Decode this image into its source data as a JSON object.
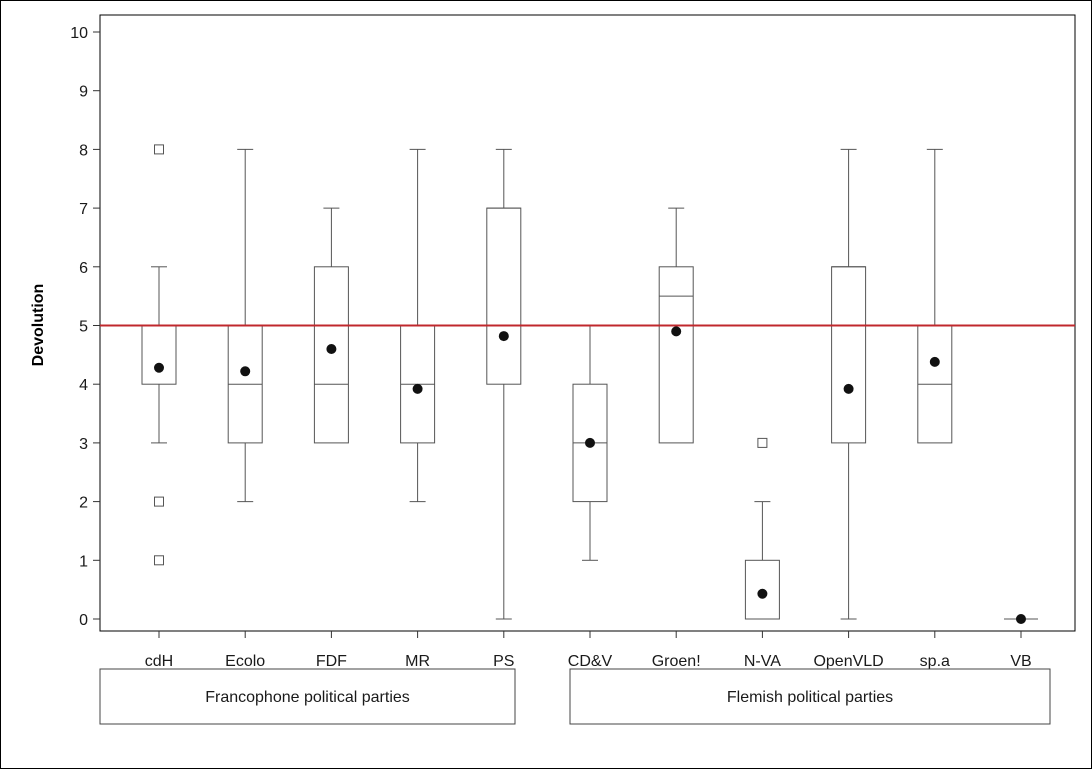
{
  "chart_data": {
    "type": "box",
    "ylabel": "Devolution",
    "xlabel": "",
    "ylim": [
      0,
      10
    ],
    "yticks": [
      0,
      1,
      2,
      3,
      4,
      5,
      6,
      7,
      8,
      9,
      10
    ],
    "reference_line": {
      "y": 5,
      "color": "#c0282d"
    },
    "categories": [
      "cdH",
      "Ecolo",
      "FDF",
      "MR",
      "PS",
      "CD&V",
      "Groen!",
      "N-VA",
      "OpenVLD",
      "sp.a",
      "VB"
    ],
    "boxes": [
      {
        "name": "cdH",
        "whisker_low": 3,
        "q1": 4,
        "median": 5,
        "q3": 5,
        "whisker_high": 6,
        "mean": 4.28,
        "outliers": [
          1,
          2,
          8
        ]
      },
      {
        "name": "Ecolo",
        "whisker_low": 2,
        "q1": 3,
        "median": 4,
        "q3": 5,
        "whisker_high": 8,
        "mean": 4.22,
        "outliers": []
      },
      {
        "name": "FDF",
        "whisker_low": 3,
        "q1": 3,
        "median": 4,
        "q3": 6,
        "whisker_high": 7,
        "mean": 4.6,
        "outliers": []
      },
      {
        "name": "MR",
        "whisker_low": 2,
        "q1": 3,
        "median": 4,
        "q3": 5,
        "whisker_high": 8,
        "mean": 3.92,
        "outliers": []
      },
      {
        "name": "PS",
        "whisker_low": 0,
        "q1": 4,
        "median": 7,
        "q3": 7,
        "whisker_high": 8,
        "mean": 4.82,
        "outliers": []
      },
      {
        "name": "CD&V",
        "whisker_low": 1,
        "q1": 2,
        "median": 3,
        "q3": 4,
        "whisker_high": 5,
        "mean": 3.0,
        "outliers": []
      },
      {
        "name": "Groen!",
        "whisker_low": 3,
        "q1": 3,
        "median": 5.5,
        "q3": 6,
        "whisker_high": 7,
        "mean": 4.9,
        "outliers": []
      },
      {
        "name": "N-VA",
        "whisker_low": 0,
        "q1": 0,
        "median": 0,
        "q3": 1,
        "whisker_high": 2,
        "mean": 0.43,
        "outliers": [
          3
        ]
      },
      {
        "name": "OpenVLD",
        "whisker_low": 0,
        "q1": 3,
        "median": 6,
        "q3": 6,
        "whisker_high": 8,
        "mean": 3.92,
        "outliers": []
      },
      {
        "name": "sp.a",
        "whisker_low": 3,
        "q1": 3,
        "median": 4,
        "q3": 5,
        "whisker_high": 8,
        "mean": 4.38,
        "outliers": []
      },
      {
        "name": "VB",
        "whisker_low": 0,
        "q1": 0,
        "median": 0,
        "q3": 0,
        "whisker_high": 0,
        "mean": 0.0,
        "outliers": []
      }
    ],
    "groups": [
      {
        "label": "Francophone political parties",
        "categories": [
          "cdH",
          "Ecolo",
          "FDF",
          "MR",
          "PS"
        ]
      },
      {
        "label": "Flemish political parties",
        "categories": [
          "CD&V",
          "Groen!",
          "N-VA",
          "OpenVLD",
          "sp.a",
          "VB"
        ]
      }
    ],
    "grid": false,
    "legend": "none"
  }
}
